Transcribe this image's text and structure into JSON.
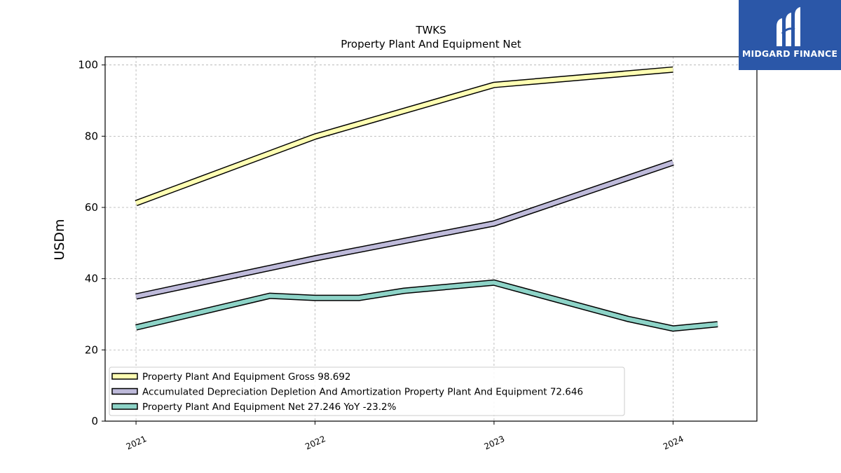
{
  "chart_data": {
    "type": "line",
    "title": "TWKS",
    "subtitle": "Property Plant And Equipment Net",
    "ylabel": "USDm",
    "xlabel": "",
    "ylim": [
      0,
      102.3
    ],
    "yticks": [
      0,
      20,
      40,
      60,
      80,
      100
    ],
    "xlim": [
      "2020-10-30",
      "2024-06-20"
    ],
    "xticks": [
      {
        "date": "2021-01-01",
        "label": "2021"
      },
      {
        "date": "2022-01-01",
        "label": "2022"
      },
      {
        "date": "2023-01-01",
        "label": "2023"
      },
      {
        "date": "2024-01-01",
        "label": "2024"
      }
    ],
    "grid": true,
    "legend_position": "lower-left",
    "series": [
      {
        "name": "Property Plant And Equipment Gross",
        "legend_label": "Property Plant And Equipment Gross  98.692",
        "color": "#ffffb3",
        "points": [
          {
            "x": "2021-01-01",
            "y": 61.2
          },
          {
            "x": "2022-01-01",
            "y": 79.9
          },
          {
            "x": "2023-01-01",
            "y": 94.4
          },
          {
            "x": "2024-01-01",
            "y": 98.7
          }
        ]
      },
      {
        "name": "Accumulated Depreciation Depletion And Amortization Property Plant And Equipment",
        "legend_label": "Accumulated Depreciation Depletion And Amortization Property Plant And Equipment  72.646",
        "color": "#bebada",
        "points": [
          {
            "x": "2021-01-01",
            "y": 35.0
          },
          {
            "x": "2022-01-01",
            "y": 45.7
          },
          {
            "x": "2023-01-01",
            "y": 55.5
          },
          {
            "x": "2024-01-01",
            "y": 72.6
          }
        ]
      },
      {
        "name": "Property Plant And Equipment Net",
        "legend_label": "Property Plant And Equipment Net  27.246 YoY -23.2%",
        "color": "#8dd3c7",
        "points": [
          {
            "x": "2021-01-01",
            "y": 26.3
          },
          {
            "x": "2021-10-01",
            "y": 35.2
          },
          {
            "x": "2022-01-01",
            "y": 34.6
          },
          {
            "x": "2022-04-01",
            "y": 34.6
          },
          {
            "x": "2022-07-01",
            "y": 36.6
          },
          {
            "x": "2023-01-01",
            "y": 38.9
          },
          {
            "x": "2023-10-01",
            "y": 28.7
          },
          {
            "x": "2024-01-01",
            "y": 26.0
          },
          {
            "x": "2024-04-01",
            "y": 27.2
          }
        ]
      }
    ]
  },
  "logo": {
    "text": "MIDGARD FINANCE",
    "background": "#2b57a8"
  }
}
